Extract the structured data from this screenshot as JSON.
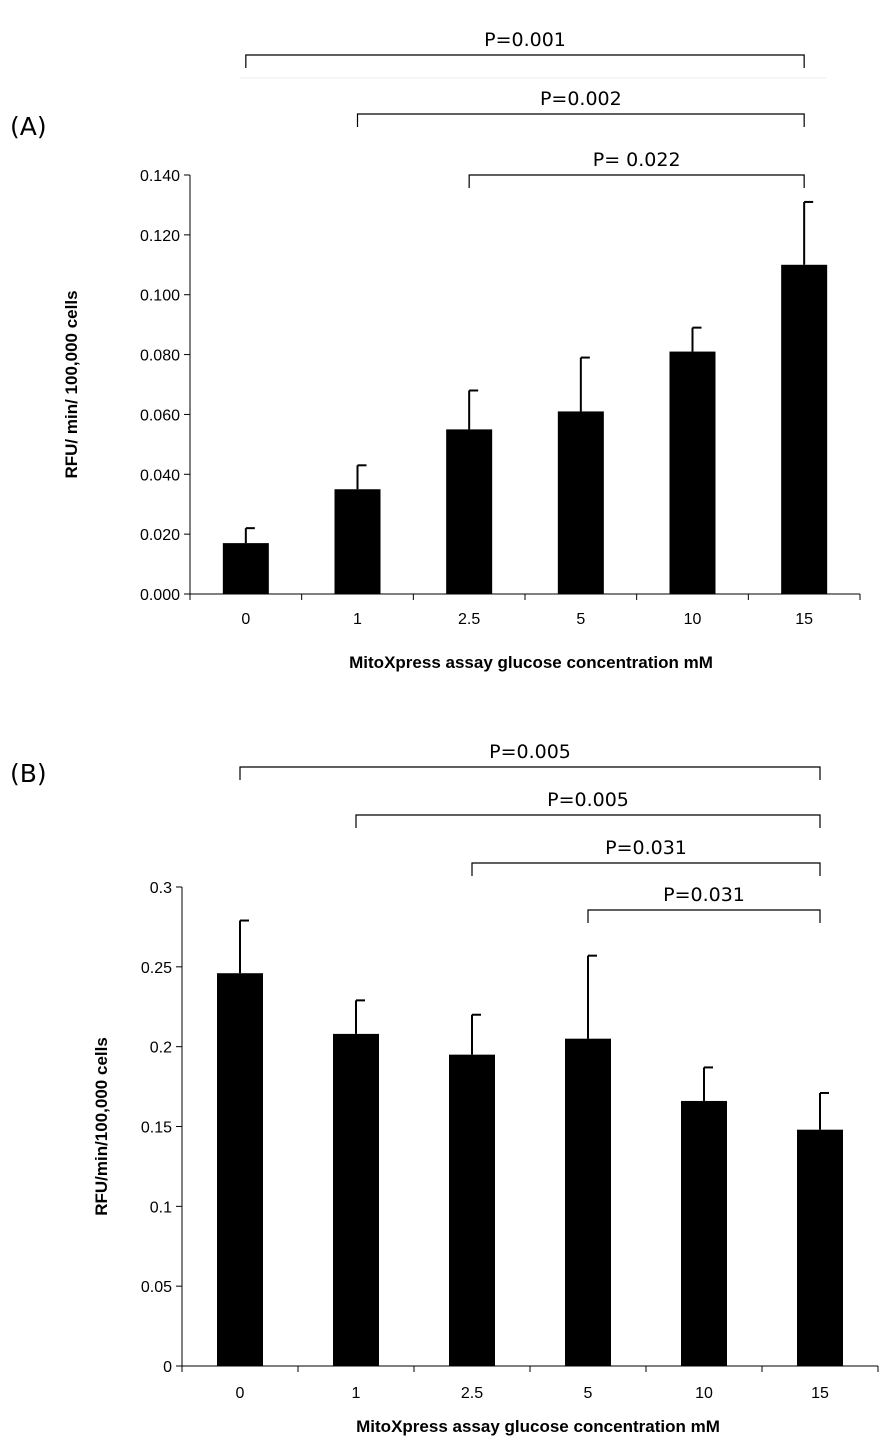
{
  "chart_data": [
    {
      "type": "bar",
      "panel_label": "(A)",
      "categories": [
        "0",
        "1",
        "2.5",
        "5",
        "10",
        "15"
      ],
      "values": [
        0.017,
        0.035,
        0.055,
        0.061,
        0.081,
        0.11
      ],
      "error": [
        0.005,
        0.008,
        0.013,
        0.018,
        0.008,
        0.021
      ],
      "xlabel": "MitoXpress assay glucose concentration mM",
      "ylabel": "RFU/ min/ 100,000 cells",
      "ylim": [
        0,
        0.14
      ],
      "yticks": [
        "0.000",
        "0.020",
        "0.040",
        "0.060",
        "0.080",
        "0.100",
        "0.120",
        "0.140"
      ],
      "grid": false,
      "bar_color": "#000000",
      "significance": [
        {
          "from": 0,
          "to": 5,
          "label": "P=0.001"
        },
        {
          "from": 1,
          "to": 5,
          "label": "P=0.002"
        },
        {
          "from": 2,
          "to": 5,
          "label": "P= 0.022"
        }
      ]
    },
    {
      "type": "bar",
      "panel_label": "(B)",
      "categories": [
        "0",
        "1",
        "2.5",
        "5",
        "10",
        "15"
      ],
      "values": [
        0.246,
        0.208,
        0.195,
        0.205,
        0.166,
        0.148
      ],
      "error": [
        0.033,
        0.021,
        0.025,
        0.052,
        0.021,
        0.023
      ],
      "xlabel": "MitoXpress assay glucose concentration mM",
      "ylabel": "RFU/min/100,000 cells",
      "ylim": [
        0,
        0.3
      ],
      "yticks": [
        "0",
        "0.05",
        "0.1",
        "0.15",
        "0.2",
        "0.25",
        "0.3"
      ],
      "grid": false,
      "bar_color": "#000000",
      "significance": [
        {
          "from": 0,
          "to": 5,
          "label": "P=0.005"
        },
        {
          "from": 1,
          "to": 5,
          "label": "P=0.005"
        },
        {
          "from": 2,
          "to": 5,
          "label": "P=0.031"
        },
        {
          "from": 3,
          "to": 5,
          "label": "P=0.031"
        }
      ]
    }
  ]
}
